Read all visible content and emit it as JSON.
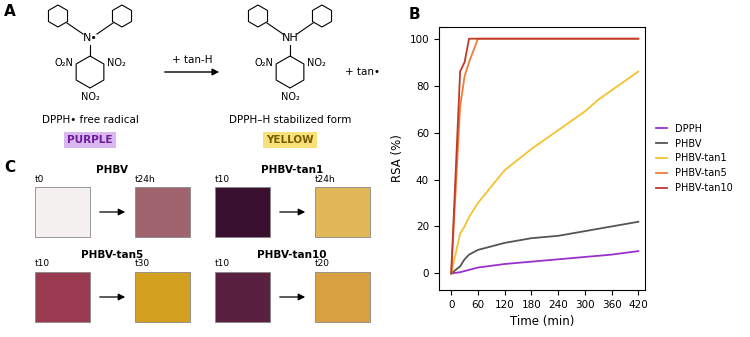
{
  "chart_data": {
    "type": "line",
    "title": "B",
    "x_label": "Time (min)",
    "y_label": "RSA (%)",
    "xlim": [
      -28,
      435
    ],
    "ylim": [
      -7,
      105
    ],
    "xticks": [
      0,
      60,
      120,
      180,
      240,
      300,
      360,
      420
    ],
    "yticks": [
      0,
      20,
      40,
      60,
      80,
      100
    ],
    "grid": false,
    "legend": "right",
    "series": [
      {
        "name": "DPPH",
        "color": "#9b30d0",
        "x": [
          0,
          20,
          40,
          60,
          120,
          180,
          240,
          300,
          360,
          420
        ],
        "values": [
          0,
          0.5,
          1.5,
          2.5,
          4,
          5,
          6,
          7,
          8,
          9.5
        ]
      },
      {
        "name": "PHBV",
        "color": "#555555",
        "x": [
          0,
          20,
          30,
          40,
          60,
          120,
          180,
          240,
          270,
          330,
          420
        ],
        "values": [
          0,
          3,
          6,
          8,
          10,
          13,
          15,
          16,
          17,
          19,
          22
        ]
      },
      {
        "name": "PHBV-tan1",
        "color": "#f5c12e",
        "x": [
          0,
          20,
          30,
          40,
          60,
          120,
          180,
          240,
          300,
          330,
          420
        ],
        "values": [
          0,
          17,
          20,
          24,
          30,
          44,
          53,
          61,
          69,
          74,
          86
        ]
      },
      {
        "name": "PHBV-tan5",
        "color": "#f07c3a",
        "x": [
          0,
          20,
          30,
          40,
          60,
          420
        ],
        "values": [
          0,
          71,
          84,
          90,
          100,
          100
        ]
      },
      {
        "name": "PHBV-tan10",
        "color": "#c0392b",
        "x": [
          0,
          20,
          30,
          40,
          420
        ],
        "values": [
          0,
          86,
          90,
          100,
          100
        ]
      }
    ]
  },
  "scheme": {
    "label": "A",
    "reactant": {
      "center": "N•",
      "groups": [
        "O₂N",
        "NO₂",
        "NO₂"
      ],
      "name": "DPPH• free radical",
      "color_name": "PURPLE"
    },
    "reagent": "+ tan-H",
    "product": {
      "center": "NH",
      "groups": [
        "O₂N",
        "NO₂",
        "NO₂"
      ],
      "name": "DPPH–H stabilized form",
      "color_name": "YELLOW"
    },
    "byproduct": "+ tan•"
  },
  "photos": {
    "label": "C",
    "samples": [
      {
        "name": "PHBV",
        "before": "t0",
        "after": "t24h"
      },
      {
        "name": "PHBV-tan1",
        "before": "t10",
        "after": "t24h"
      },
      {
        "name": "PHBV-tan5",
        "before": "t10",
        "after": "t30"
      },
      {
        "name": "PHBV-tan10",
        "before": "t10",
        "after": "t20"
      }
    ]
  }
}
